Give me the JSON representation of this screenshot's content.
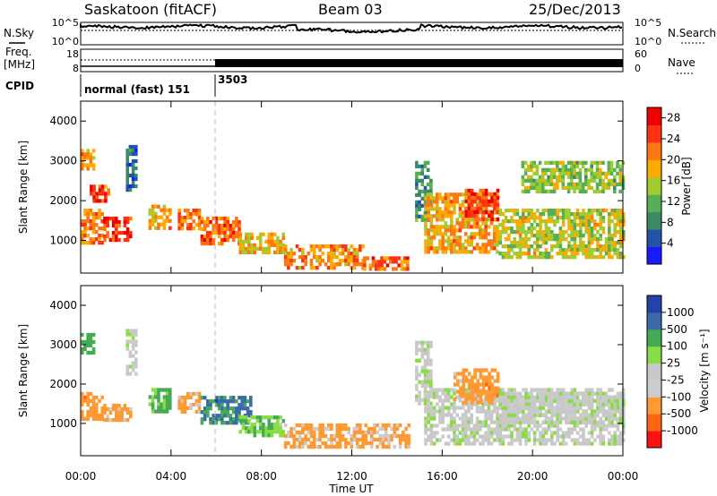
{
  "header": {
    "title": "Saskatoon (fitACF)",
    "beam": "Beam 03",
    "date": "25/Dec/2013"
  },
  "strip": {
    "nsky_label": "N.Sky",
    "nsearch_label": "N.Search",
    "noise_ticks": [
      "10^5",
      "10^0"
    ],
    "freq_label_1": "Freq.",
    "freq_label_2": "[MHz]",
    "freq_ticks": [
      "18",
      "8"
    ],
    "nave_label": "Nave",
    "nave_ticks": [
      "60",
      "0"
    ],
    "cpid_label": "CPID",
    "cpid_entries": [
      {
        "hour": 0,
        "text": "normal (fast) 151"
      },
      {
        "hour": 6,
        "text": "3503"
      }
    ]
  },
  "colors": {
    "power": [
      "#1a1aff",
      "#2255aa",
      "#3a8a66",
      "#55b055",
      "#a0cc30",
      "#ffaa00",
      "#ff7711",
      "#ff3311",
      "#ee0000"
    ],
    "velocity": [
      "#ff1111",
      "#ff6611",
      "#ff9933",
      "#cccccc",
      "#c8c8c8",
      "#88dd44",
      "#44aa55",
      "#3a6aaa",
      "#2244aa"
    ]
  },
  "chart_data": [
    {
      "type": "heatmap",
      "title": "",
      "xlabel": "Time UT",
      "ylabel": "Slant Range [km]",
      "xlim": [
        0,
        24
      ],
      "ylim": [
        180,
        4500
      ],
      "x_ticks": [
        "00:00",
        "04:00",
        "08:00",
        "12:00",
        "16:00",
        "20:00",
        "00:00"
      ],
      "y_ticks": [
        1000,
        2000,
        3000,
        4000
      ],
      "colorbar": {
        "label": "Power [dB]",
        "ticks": [
          4,
          8,
          12,
          16,
          20,
          24,
          28
        ],
        "range": [
          0,
          30
        ]
      },
      "regions": [
        {
          "t0": 0.0,
          "t1": 1.0,
          "r0": 900,
          "r1": 1800,
          "value": 22
        },
        {
          "t0": 0.0,
          "t1": 0.6,
          "r0": 2800,
          "r1": 3300,
          "value": 20
        },
        {
          "t0": 1.0,
          "t1": 2.2,
          "r0": 1000,
          "r1": 1600,
          "value": 27
        },
        {
          "t0": 0.4,
          "t1": 1.2,
          "r0": 2000,
          "r1": 2400,
          "value": 25
        },
        {
          "t0": 2.0,
          "t1": 2.4,
          "r0": 2300,
          "r1": 3400,
          "value": 6
        },
        {
          "t0": 3.0,
          "t1": 4.0,
          "r0": 1300,
          "r1": 1900,
          "value": 20
        },
        {
          "t0": 4.3,
          "t1": 5.3,
          "r0": 1300,
          "r1": 1800,
          "value": 23
        },
        {
          "t0": 5.3,
          "t1": 7.0,
          "r0": 900,
          "r1": 1600,
          "value": 24
        },
        {
          "t0": 7.0,
          "t1": 9.0,
          "r0": 700,
          "r1": 1200,
          "value": 18
        },
        {
          "t0": 9.0,
          "t1": 12.5,
          "r0": 300,
          "r1": 900,
          "value": 21
        },
        {
          "t0": 12.5,
          "t1": 14.5,
          "r0": 300,
          "r1": 600,
          "value": 24
        },
        {
          "t0": 14.8,
          "t1": 15.5,
          "r0": 1500,
          "r1": 3000,
          "value": 9
        },
        {
          "t0": 15.2,
          "t1": 18.5,
          "r0": 700,
          "r1": 2200,
          "value": 20
        },
        {
          "t0": 17.0,
          "t1": 18.5,
          "r0": 1500,
          "r1": 2300,
          "value": 26
        },
        {
          "t0": 18.5,
          "t1": 24.0,
          "r0": 600,
          "r1": 1800,
          "value": 16
        },
        {
          "t0": 19.5,
          "t1": 24.0,
          "r0": 2200,
          "r1": 3000,
          "value": 14
        }
      ]
    },
    {
      "type": "heatmap",
      "title": "",
      "xlabel": "Time UT",
      "ylabel": "Slant Range [km]",
      "xlim": [
        0,
        24
      ],
      "ylim": [
        180,
        4500
      ],
      "x_ticks": [
        "00:00",
        "04:00",
        "08:00",
        "12:00",
        "16:00",
        "20:00",
        "00:00"
      ],
      "y_ticks": [
        1000,
        2000,
        3000,
        4000
      ],
      "colorbar": {
        "label": "Velocity [m s⁻¹]",
        "ticks": [
          "1000",
          "500",
          "100",
          "25",
          "-25",
          "-100",
          "-500",
          "-1000"
        ]
      },
      "regions": [
        {
          "t0": 0.0,
          "t1": 1.0,
          "r0": 1100,
          "r1": 1800,
          "value": -300
        },
        {
          "t0": 0.0,
          "t1": 0.6,
          "r0": 2800,
          "r1": 3300,
          "value": 300
        },
        {
          "t0": 1.0,
          "t1": 2.2,
          "r0": 1100,
          "r1": 1500,
          "value": -200
        },
        {
          "t0": 2.0,
          "t1": 2.4,
          "r0": 2300,
          "r1": 3400,
          "value": 0
        },
        {
          "t0": 3.0,
          "t1": 4.0,
          "r0": 1300,
          "r1": 1900,
          "value": 150
        },
        {
          "t0": 4.3,
          "t1": 5.3,
          "r0": 1300,
          "r1": 1800,
          "value": -150
        },
        {
          "t0": 5.3,
          "t1": 7.5,
          "r0": 1000,
          "r1": 1700,
          "value": 600
        },
        {
          "t0": 7.0,
          "t1": 9.0,
          "r0": 700,
          "r1": 1200,
          "value": 80
        },
        {
          "t0": 9.0,
          "t1": 14.5,
          "r0": 400,
          "r1": 1000,
          "value": -150
        },
        {
          "t0": 14.8,
          "t1": 15.5,
          "r0": 1500,
          "r1": 3100,
          "value": 0
        },
        {
          "t0": 15.2,
          "t1": 24.0,
          "r0": 500,
          "r1": 1900,
          "value": 0
        },
        {
          "t0": 16.5,
          "t1": 18.5,
          "r0": 1500,
          "r1": 2400,
          "value": -300
        },
        {
          "t0": 18.5,
          "t1": 24.0,
          "r0": 1000,
          "r1": 1800,
          "value": 0
        }
      ]
    }
  ]
}
